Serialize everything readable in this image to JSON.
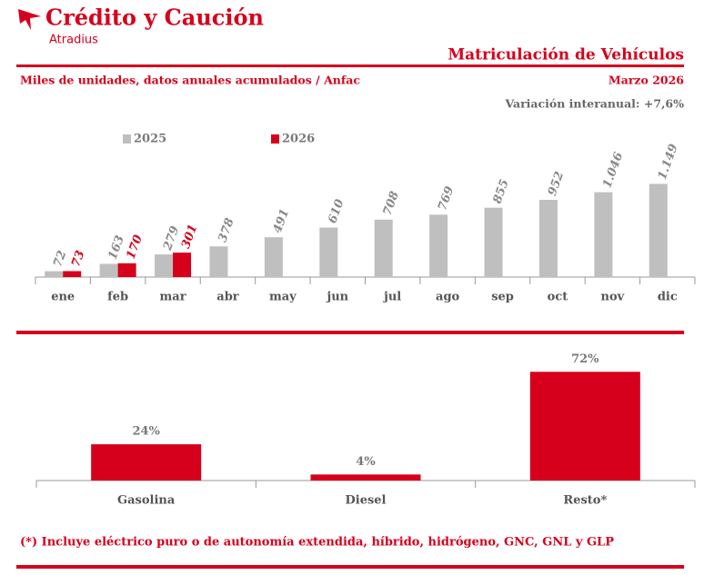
{
  "header": {
    "brand": "Crédito y Caución",
    "sub_brand": "Atradius",
    "title": "Matriculación de Vehículos",
    "subtitle": "Miles de unidades, datos anuales acumulados / Anfac",
    "date": "Marzo 2026",
    "note": "Variación interanual: +7,6%"
  },
  "chart_data": [
    {
      "type": "bar",
      "categories": [
        "ene",
        "feb",
        "mar",
        "abr",
        "may",
        "jun",
        "jul",
        "ago",
        "sep",
        "oct",
        "nov",
        "dic"
      ],
      "series": [
        {
          "name": "2025",
          "color": "#bfbfbf",
          "values": [
            72,
            163,
            279,
            378,
            491,
            610,
            708,
            769,
            855,
            952,
            1046,
            1149
          ],
          "value_labels": [
            "72",
            "163",
            "279",
            "378",
            "491",
            "610",
            "708",
            "769",
            "855",
            "952",
            "1.046",
            "1.149"
          ]
        },
        {
          "name": "2026",
          "color": "#d6001c",
          "values": [
            73,
            170,
            301,
            null,
            null,
            null,
            null,
            null,
            null,
            null,
            null,
            null
          ]
        }
      ],
      "ylim": [
        0,
        1400
      ],
      "legend": "top-left"
    },
    {
      "type": "bar",
      "categories": [
        "Gasolina",
        "Diesel",
        "Resto*"
      ],
      "values": [
        24,
        4,
        72
      ],
      "value_labels": [
        "24%",
        "4%",
        "72%"
      ],
      "color": "#d6001c",
      "ylim": [
        0,
        80
      ]
    }
  ],
  "footnote": "(*) Incluye eléctrico puro o de autonomía extendida, híbrido, hidrógeno, GNC, GNL y GLP"
}
